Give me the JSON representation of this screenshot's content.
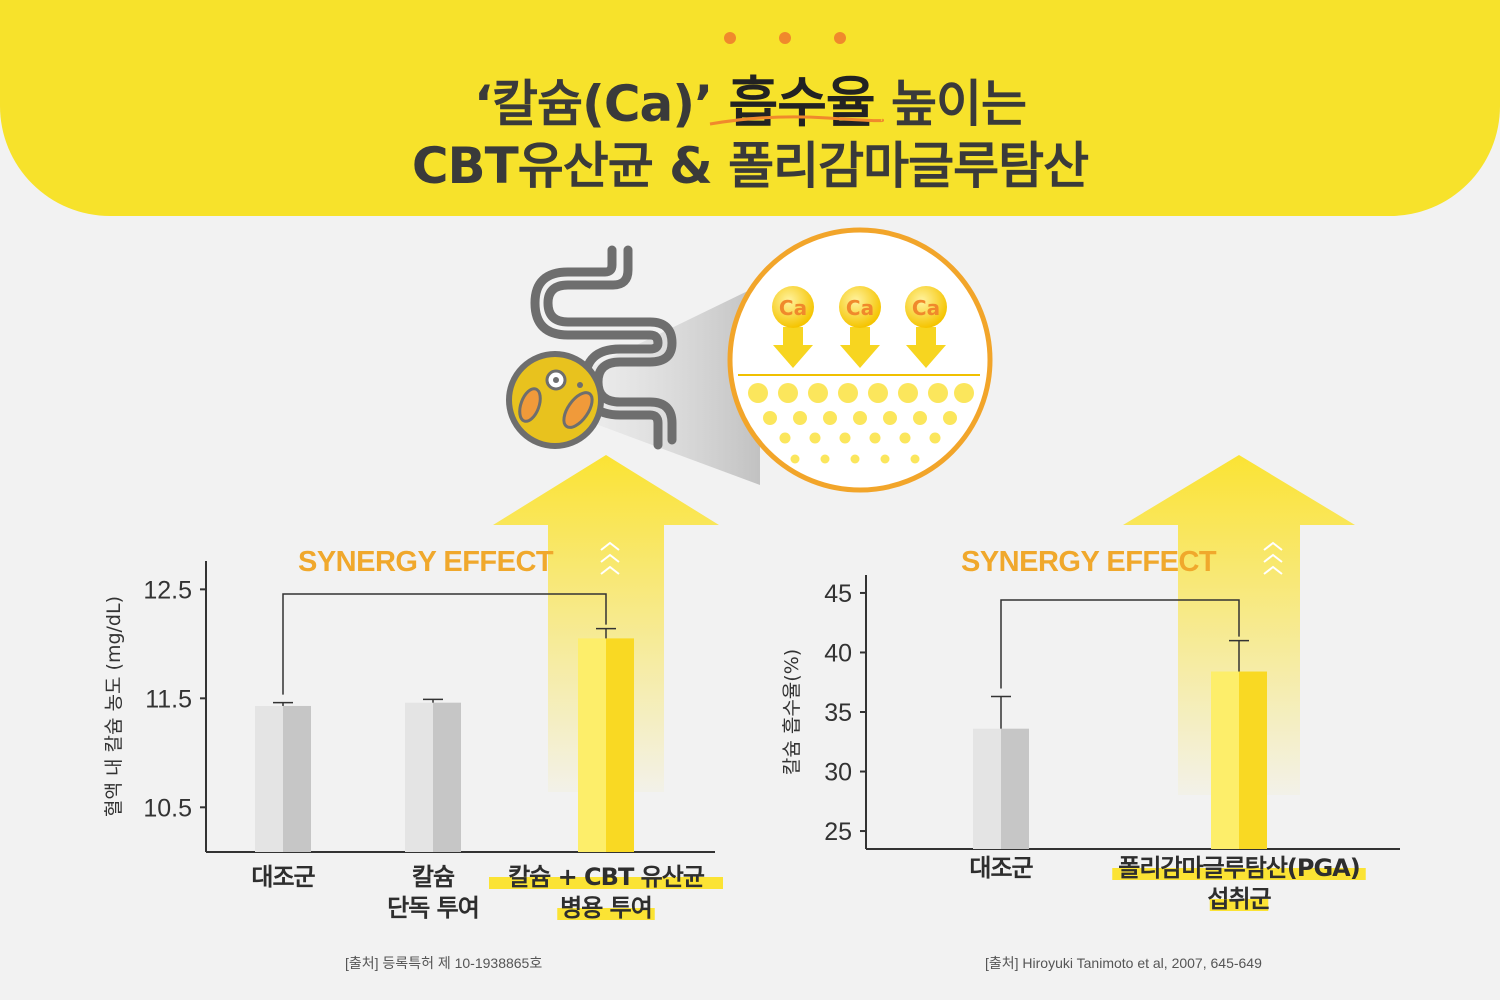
{
  "header": {
    "title_line1_pre": "‘칼슘(Ca)’",
    "title_line1_highlight": "흡수율",
    "title_line1_post": "높이는",
    "title_line2": "CBT유산균 & 폴리감마글루탐산",
    "bg_color": "#f7e22b",
    "highlight_color": "#f0892c"
  },
  "illustration": {
    "ca_labels": [
      "Ca",
      "Ca",
      "Ca"
    ],
    "icons": [
      "intestine-icon",
      "bacteria-icon",
      "ca-absorption-icon"
    ]
  },
  "chart_data": [
    {
      "type": "bar",
      "annotation": "SYNERGY EFFECT",
      "ylabel": "혈액 내 칼슘 농도 (mg/dL)",
      "ylim": [
        10.2,
        12.65
      ],
      "yticks": [
        "12.5",
        "11.5",
        "10.5"
      ],
      "ytick_values": [
        12.5,
        11.5,
        10.5
      ],
      "categories": [
        [
          "대조군"
        ],
        [
          "칼슘",
          "단독 투여"
        ],
        [
          "칼슘 + CBT 유산균",
          "병용 투여"
        ]
      ],
      "values": [
        11.43,
        11.46,
        12.05
      ],
      "errors": [
        0.03,
        0.03,
        0.09
      ],
      "highlight_index": 2,
      "bracket": [
        0,
        2
      ]
    },
    {
      "type": "bar",
      "annotation": "SYNERGY EFFECT",
      "ylabel": "칼슘 흡수율(%)",
      "ylim": [
        24.5,
        45.5
      ],
      "yticks": [
        "45",
        "40",
        "35",
        "30",
        "25"
      ],
      "ytick_values": [
        45,
        40,
        35,
        30,
        25
      ],
      "categories": [
        [
          "대조군"
        ],
        [
          "폴리감마글루탐산(PGA)",
          "섭취군"
        ]
      ],
      "values": [
        33.6,
        38.4
      ],
      "errors": [
        2.7,
        2.6
      ],
      "highlight_index": 1,
      "bracket": [
        0,
        1
      ]
    }
  ],
  "sources": [
    "[출처] 등록특허 제 10-1938865호",
    "[출처] Hiroyuki Tanimoto et al, 2007, 645-649"
  ],
  "colors": {
    "gray_bar": "#d9d9d9",
    "yellow_bar": "#fbe334",
    "accent_orange": "#f0a82c",
    "text_dark": "#333333"
  }
}
